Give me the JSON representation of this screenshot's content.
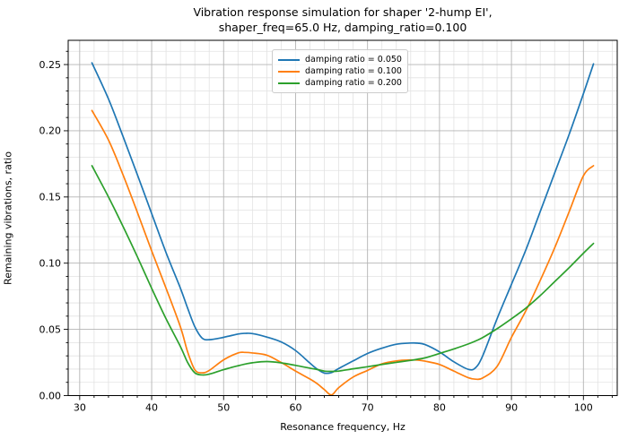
{
  "title": {
    "line1": "Vibration response simulation for shaper '2-hump EI',",
    "line2": "shaper_freq=65.0 Hz, damping_ratio=0.100"
  },
  "chart_data": {
    "type": "line",
    "title": "Vibration response simulation for shaper '2-hump EI', shaper_freq=65.0 Hz, damping_ratio=0.100",
    "xlabel": "Resonance frequency, Hz",
    "ylabel": "Remaining vibrations, ratio",
    "xlim": [
      28.4,
      104.7
    ],
    "ylim": [
      0.0,
      0.2683
    ],
    "x_major_ticks": [
      30,
      40,
      50,
      60,
      70,
      80,
      90,
      100
    ],
    "x_minor_step": 2,
    "y_major_ticks": [
      0.0,
      0.05,
      0.1,
      0.15,
      0.2,
      0.25
    ],
    "y_minor_step": 0.01,
    "grid": "major+minor",
    "legend_position": "upper center",
    "x": [
      31.7,
      34,
      36,
      38,
      40,
      42,
      44,
      45,
      46,
      47,
      48,
      50,
      52,
      53,
      54,
      56,
      58,
      60,
      62,
      63,
      64,
      65,
      66,
      68,
      70,
      72,
      74,
      76,
      77,
      78,
      80,
      82,
      84,
      85,
      86,
      88,
      90,
      92,
      94,
      96,
      98,
      100,
      101.4
    ],
    "series": [
      {
        "name": "damping ratio = 0.050",
        "color": "#1f77b4",
        "values": [
          0.2513,
          0.224,
          0.196,
          0.167,
          0.1375,
          0.108,
          0.081,
          0.066,
          0.052,
          0.0435,
          0.0422,
          0.044,
          0.0465,
          0.047,
          0.0468,
          0.0442,
          0.0405,
          0.034,
          0.0245,
          0.02,
          0.017,
          0.0174,
          0.0205,
          0.0262,
          0.0318,
          0.0358,
          0.0388,
          0.0397,
          0.0396,
          0.0385,
          0.033,
          0.0255,
          0.0198,
          0.021,
          0.03,
          0.058,
          0.084,
          0.11,
          0.139,
          0.168,
          0.197,
          0.228,
          0.2505
        ]
      },
      {
        "name": "damping ratio = 0.100",
        "color": "#ff7f0e",
        "values": [
          0.2153,
          0.193,
          0.167,
          0.1386,
          0.1093,
          0.0811,
          0.0518,
          0.033,
          0.0195,
          0.0172,
          0.019,
          0.027,
          0.0322,
          0.0326,
          0.0322,
          0.0305,
          0.025,
          0.0185,
          0.0125,
          0.009,
          0.0045,
          0.0005,
          0.006,
          0.014,
          0.019,
          0.024,
          0.0262,
          0.0269,
          0.0268,
          0.026,
          0.0235,
          0.0185,
          0.0135,
          0.0124,
          0.0133,
          0.022,
          0.044,
          0.064,
          0.087,
          0.1115,
          0.1386,
          0.166,
          0.1736
        ]
      },
      {
        "name": "damping ratio = 0.200",
        "color": "#2ca02c",
        "values": [
          0.1736,
          0.15,
          0.128,
          0.105,
          0.081,
          0.058,
          0.037,
          0.025,
          0.0172,
          0.0156,
          0.0162,
          0.0196,
          0.0225,
          0.0238,
          0.0248,
          0.0257,
          0.0247,
          0.0228,
          0.0207,
          0.0197,
          0.0185,
          0.0183,
          0.0185,
          0.0202,
          0.0218,
          0.0235,
          0.0251,
          0.0266,
          0.0275,
          0.0285,
          0.0318,
          0.0352,
          0.039,
          0.0412,
          0.0438,
          0.0505,
          0.058,
          0.066,
          0.0755,
          0.086,
          0.0965,
          0.1075,
          0.1149
        ]
      }
    ],
    "styles": {
      "spine_color": "#000000",
      "major_grid_color": "#b4b4b4",
      "minor_grid_color": "#e2e2e2",
      "tick_label_color": "#000000"
    }
  }
}
